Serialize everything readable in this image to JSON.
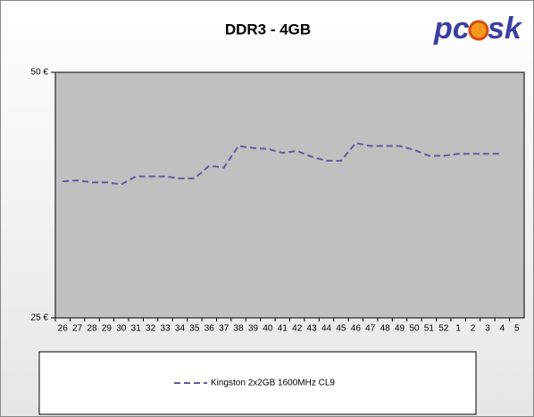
{
  "chart_data": {
    "type": "line",
    "title": "DDR3 - 4GB",
    "logo": {
      "left": "pc",
      "right": "sk"
    },
    "categories": [
      "26",
      "27",
      "28",
      "29",
      "30",
      "31",
      "32",
      "33",
      "34",
      "35",
      "36",
      "37",
      "38",
      "39",
      "40",
      "41",
      "42",
      "43",
      "44",
      "45",
      "46",
      "47",
      "48",
      "49",
      "50",
      "51",
      "52",
      "1",
      "2",
      "3",
      "4",
      "5"
    ],
    "series": [
      {
        "name": "Kingston 2x2GB 1600MHz CL9",
        "color": "#67589e",
        "values": [
          38.9,
          39.0,
          38.8,
          38.8,
          38.6,
          39.4,
          39.4,
          39.4,
          39.2,
          39.2,
          40.5,
          40.3,
          42.5,
          42.3,
          42.2,
          41.8,
          42.0,
          41.4,
          41.0,
          41.0,
          42.8,
          42.5,
          42.5,
          42.5,
          42.1,
          41.5,
          41.5,
          41.7,
          41.7,
          41.7,
          41.7,
          null
        ]
      }
    ],
    "ylim": [
      25,
      50
    ],
    "yticks": [
      {
        "value": 25,
        "label": "25 €"
      },
      {
        "value": 50,
        "label": "50 €"
      }
    ],
    "line_style": "dashed",
    "legend": "bottom"
  }
}
